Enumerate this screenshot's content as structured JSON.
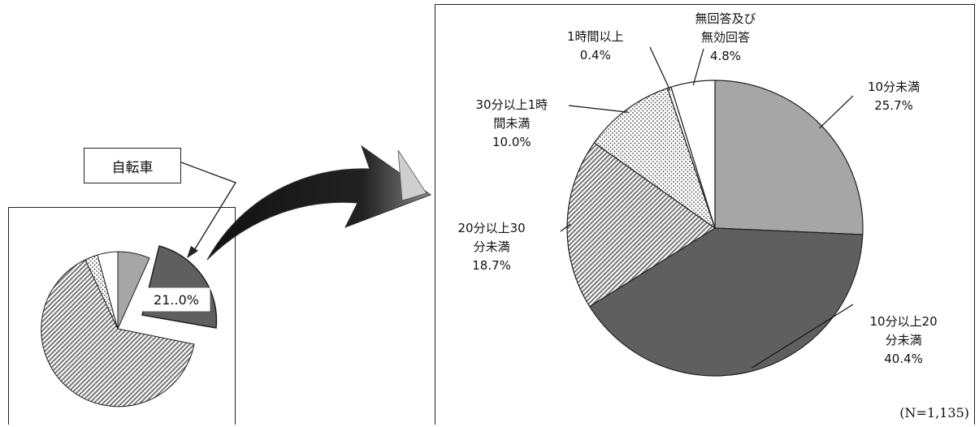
{
  "callout_label": "自転車",
  "small_pie_value_label": "21..0%",
  "sample_note": "(N=1,135)",
  "chart_data": {
    "type": "pie",
    "slices": [
      {
        "label": [
          "10分未満"
        ],
        "percent_label": "25.7%",
        "value": 25.7,
        "fill": "solid-light"
      },
      {
        "label": [
          "10分以上20",
          "分未満"
        ],
        "percent_label": "40.4%",
        "value": 40.4,
        "fill": "solid-dark"
      },
      {
        "label": [
          "20分以上30",
          "分未満"
        ],
        "percent_label": "18.7%",
        "value": 18.7,
        "fill": "diagonal"
      },
      {
        "label": [
          "30分以上1時",
          "間未満"
        ],
        "percent_label": "10.0%",
        "value": 10.0,
        "fill": "dots"
      },
      {
        "label": [
          "1時間以上"
        ],
        "percent_label": "0.4%",
        "value": 0.4,
        "fill": "white"
      },
      {
        "label": [
          "無回答及び",
          "無効回答"
        ],
        "percent_label": "4.8%",
        "value": 4.8,
        "fill": "white"
      }
    ]
  },
  "colors": {
    "light_gray": "#a6a6a6",
    "dark_gray": "#5f5f5f",
    "outline": "#222222"
  }
}
